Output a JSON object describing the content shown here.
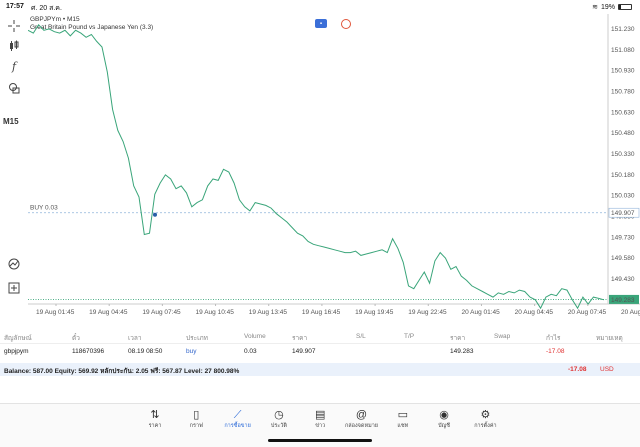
{
  "status": {
    "time": "17:57",
    "date": "ศ. 20 ส.ค.",
    "battery": "19%",
    "battery_level": 0.19,
    "wifi_icon": "wifi-icon"
  },
  "chart": {
    "symbol": "GBPJPYm • M15",
    "description": "Great Britain Pound vs Japanese Yen (3.3)",
    "timeframe": "M15",
    "buy_label": "BUY 0.03",
    "buy_price": "149.907",
    "current_price": "149.283",
    "y_ticks": [
      "151.230",
      "151.080",
      "150.930",
      "150.780",
      "150.630",
      "150.480",
      "150.330",
      "150.180",
      "150.030",
      "149.880",
      "149.730",
      "149.580",
      "149.430",
      "149.283"
    ],
    "x_ticks": [
      "19 Aug 01:45",
      "19 Aug 04:45",
      "19 Aug 07:45",
      "19 Aug 10:45",
      "19 Aug 13:45",
      "19 Aug 16:45",
      "19 Aug 19:45",
      "19 Aug 22:45",
      "20 Aug 01:45",
      "20 Aug 04:45",
      "20 Aug 07:45",
      "20 Aug 10:4"
    ],
    "colors": {
      "line": "#3aa57a",
      "buy_line": "#8fb3d9",
      "price_line": "#3aa57a"
    }
  },
  "chart_data": {
    "type": "line",
    "title": "GBPJPYm • M15",
    "xlabel": "",
    "ylabel": "",
    "ylim": [
      149.25,
      151.28
    ],
    "series": [
      {
        "name": "GBPJPYm",
        "values": [
          151.22,
          151.2,
          151.26,
          151.22,
          151.23,
          151.21,
          151.2,
          151.22,
          151.18,
          151.22,
          151.2,
          151.17,
          151.19,
          151.14,
          151.1,
          150.92,
          150.65,
          150.5,
          150.42,
          150.3,
          150.1,
          150.02,
          149.75,
          149.76,
          150.04,
          150.12,
          150.18,
          150.15,
          150.08,
          150.1,
          150.05,
          149.95,
          149.98,
          150.0,
          150.1,
          150.15,
          150.14,
          150.22,
          150.2,
          150.12,
          150.0,
          149.95,
          149.92,
          149.98,
          149.97,
          149.96,
          149.94,
          149.9,
          149.87,
          149.84,
          149.8,
          149.76,
          149.74,
          149.7,
          149.68,
          149.67,
          149.66,
          149.65,
          149.64,
          149.63,
          149.62,
          149.62,
          149.63,
          149.6,
          149.61,
          149.62,
          149.63,
          149.64,
          149.62,
          149.72,
          149.65,
          149.55,
          149.38,
          149.36,
          149.42,
          149.48,
          149.4,
          149.56,
          149.62,
          149.58,
          149.5,
          149.52,
          149.45,
          149.42,
          149.38,
          149.36,
          149.34,
          149.32,
          149.3,
          149.33,
          149.32,
          149.34,
          149.33,
          149.35,
          149.34,
          149.3,
          149.28,
          149.22,
          149.3,
          149.32,
          149.31,
          149.36,
          149.35,
          149.28,
          149.22,
          149.3,
          149.25,
          149.3,
          149.29,
          149.28
        ]
      }
    ]
  },
  "table": {
    "headers": [
      "สัญลักษณ์",
      "ตั๋ว",
      "เวลา",
      "ประเภท",
      "Volume",
      "ราคา",
      "S/L",
      "T/P",
      "ราคา",
      "Swap",
      "กำไร",
      "หมายเหตุ"
    ],
    "rows": [
      {
        "symbol": "gbpjpym",
        "ticket": "118670396",
        "time": "08.19 08:50",
        "type": "buy",
        "volume": "0.03",
        "open_price": "149.907",
        "sl": "",
        "tp": "",
        "price": "149.283",
        "swap": "",
        "profit": "-17.08",
        "comment": ""
      }
    ]
  },
  "balance": {
    "text": "Balance: 587.00 Equity: 569.92 หลักประกัน: 2.05 ฟรี: 567.87 Level: 27 800.98%",
    "profit": "-17.08",
    "currency": "USD"
  },
  "nav": [
    {
      "label": "ราคา",
      "icon": "quotes-icon"
    },
    {
      "label": "กราฟ",
      "icon": "candles-icon"
    },
    {
      "label": "การซื้อขาย",
      "icon": "trade-icon",
      "active": true
    },
    {
      "label": "ประวัติ",
      "icon": "history-icon"
    },
    {
      "label": "ข่าว",
      "icon": "news-icon"
    },
    {
      "label": "กล่องจดหมาย",
      "icon": "mailbox-icon"
    },
    {
      "label": "แชท",
      "icon": "chat-icon"
    },
    {
      "label": "บัญชี",
      "icon": "account-icon"
    },
    {
      "label": "การตั้งค่า",
      "icon": "settings-icon"
    }
  ]
}
